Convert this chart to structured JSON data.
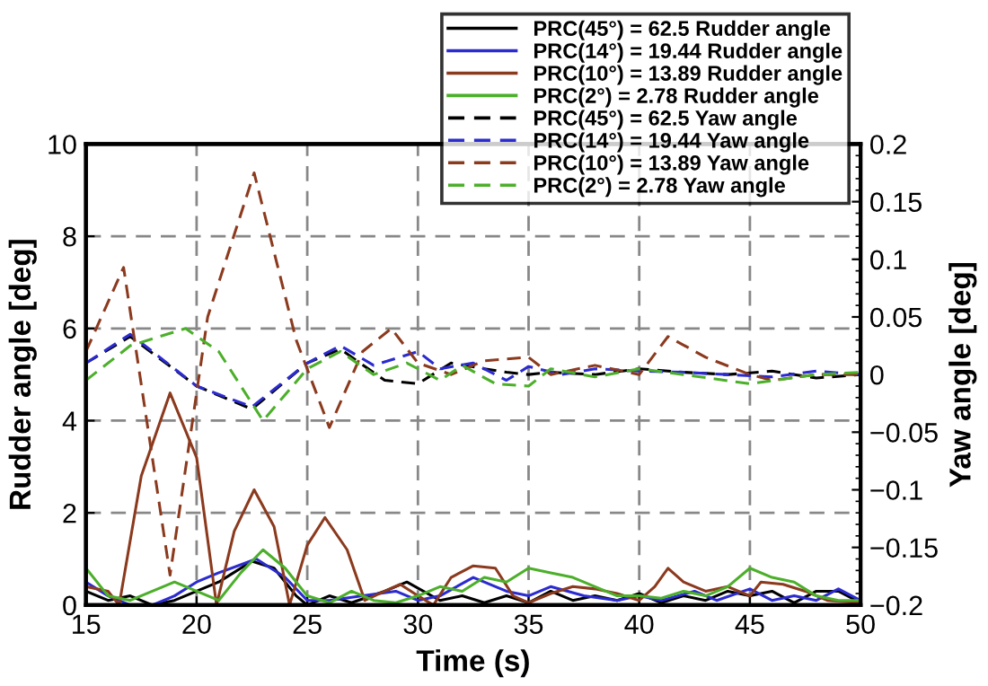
{
  "chart_data": {
    "type": "line",
    "xlabel": "Time (s)",
    "ylabel": "Rudder angle [deg]",
    "y2label": "Yaw angle [deg]",
    "xlim": [
      15,
      50
    ],
    "xticks": [
      15,
      20,
      25,
      30,
      35,
      40,
      45,
      50
    ],
    "ylim": [
      0,
      10
    ],
    "yticks": [
      0,
      2,
      4,
      6,
      8,
      10
    ],
    "y2lim": [
      -0.2,
      0.2
    ],
    "y2ticks": [
      {
        "value": -0.2,
        "label": "−0.2"
      },
      {
        "value": -0.15,
        "label": "−0.15"
      },
      {
        "value": -0.1,
        "label": "−0.1"
      },
      {
        "value": -0.05,
        "label": "−0.05"
      },
      0,
      0.05,
      0.1,
      0.15,
      0.2
    ],
    "grid": true,
    "legend": "top right",
    "series": [
      {
        "name": "PRC(45°) = 62.5 Rudder angle",
        "color": "#000000",
        "line_style": "solid",
        "x": [
          15,
          16,
          17,
          18,
          19,
          20,
          21,
          22.5,
          23.5,
          24.5,
          25,
          26,
          27,
          28.5,
          29.5,
          31,
          32,
          33,
          34,
          35,
          36,
          37,
          38,
          39,
          40,
          41,
          42,
          43,
          44,
          45,
          46,
          47,
          48,
          49,
          50
        ],
        "values": [
          0.3,
          0.1,
          0.2,
          0,
          0.1,
          0.3,
          0.5,
          0.95,
          0.8,
          0.2,
          0,
          0.2,
          0.05,
          0.3,
          0.5,
          0.1,
          0.2,
          0.05,
          0.2,
          0.05,
          0.3,
          0.1,
          0.2,
          0.1,
          0.25,
          0.05,
          0.2,
          0.1,
          0.3,
          0.2,
          0.3,
          0.05,
          0.3,
          0.3,
          0.05
        ]
      },
      {
        "name": "PRC(14°) = 19.44 Rudder angle",
        "color": "#2b2bd0",
        "line_style": "solid",
        "x": [
          15,
          16,
          17,
          18,
          19,
          20,
          21,
          22.7,
          24,
          25,
          26,
          27.5,
          29,
          30,
          31,
          32.5,
          34,
          35,
          36,
          37.5,
          39,
          40,
          41,
          42.5,
          43.5,
          45,
          46,
          47,
          48,
          49,
          50
        ],
        "values": [
          0.5,
          0.2,
          0,
          0,
          0.2,
          0.5,
          0.7,
          1.0,
          0.6,
          0.1,
          0.1,
          0.2,
          0.3,
          0.1,
          0.2,
          0.6,
          0.3,
          0.2,
          0.4,
          0.2,
          0.1,
          0.2,
          0.1,
          0.3,
          0.1,
          0.35,
          0.1,
          0.2,
          0.1,
          0.35,
          0.1
        ]
      },
      {
        "name": "PRC(10°) = 13.89 Rudder angle",
        "color": "#8b3a1e",
        "line_style": "solid",
        "x": [
          15,
          16,
          16.5,
          17.5,
          18.8,
          20,
          20.9,
          21.7,
          22.6,
          23.5,
          24.2,
          25,
          25.8,
          26.8,
          27.6,
          28.5,
          29.2,
          30,
          30.7,
          31.5,
          32.5,
          33.5,
          34.3,
          35,
          36,
          37,
          38,
          39,
          40,
          40.7,
          41.3,
          42,
          43,
          44,
          45,
          45.5,
          46.5,
          47.5,
          48.5,
          50
        ],
        "values": [
          0.4,
          0.3,
          0,
          2.8,
          4.6,
          3.2,
          0,
          1.6,
          2.5,
          1.7,
          0,
          1.3,
          1.9,
          1.2,
          0.1,
          0.3,
          0.45,
          0.2,
          0,
          0.6,
          0.85,
          0.8,
          0.2,
          0.05,
          0.25,
          0.4,
          0.35,
          0.25,
          0.1,
          0.4,
          0.8,
          0.5,
          0.3,
          0.4,
          0.2,
          0.5,
          0.45,
          0.3,
          0.1,
          0.05
        ]
      },
      {
        "name": "PRC(2°) = 2.78 Rudder angle",
        "color": "#4caf2a",
        "line_style": "solid",
        "x": [
          15,
          16,
          17,
          18,
          19,
          20,
          21,
          22,
          23,
          24,
          25,
          26,
          27,
          28,
          29,
          30,
          31,
          32,
          33,
          34,
          35,
          36,
          37,
          38,
          39,
          40,
          41,
          42,
          43,
          44,
          45,
          46,
          47,
          48,
          49,
          50
        ],
        "values": [
          0.8,
          0.2,
          0.1,
          0.3,
          0.5,
          0.3,
          0.1,
          0.7,
          1.2,
          0.8,
          0.2,
          0.05,
          0.3,
          0.1,
          0.05,
          0.2,
          0.4,
          0.3,
          0.6,
          0.5,
          0.8,
          0.7,
          0.6,
          0.4,
          0.2,
          0.2,
          0.15,
          0.3,
          0.2,
          0.4,
          0.8,
          0.6,
          0.5,
          0.2,
          0.1,
          0.1
        ]
      },
      {
        "name": "PRC(45°) = 62.5 Yaw angle",
        "color": "#000000",
        "line_style": "dashed",
        "axis": "y2",
        "x": [
          15,
          17,
          20,
          22.5,
          25,
          26.5,
          28.5,
          30,
          31.5,
          33,
          34,
          35,
          36,
          38,
          40,
          42,
          44,
          46,
          48,
          50
        ],
        "values": [
          0.01,
          0.033,
          -0.01,
          -0.03,
          0.01,
          0.022,
          -0.005,
          -0.008,
          0.01,
          0.005,
          0.002,
          0,
          0.002,
          0,
          0.005,
          0.002,
          0,
          0.003,
          -0.003,
          0
        ]
      },
      {
        "name": "PRC(14°) = 19.44 Yaw angle",
        "color": "#2b2bd0",
        "line_style": "dashed",
        "axis": "y2",
        "x": [
          15,
          17,
          20,
          22.5,
          25,
          26.5,
          28,
          30,
          31,
          32.5,
          34,
          35,
          36.5,
          38,
          40,
          42,
          44,
          46,
          48,
          50
        ],
        "values": [
          0.01,
          0.035,
          -0.01,
          -0.028,
          0.01,
          0.025,
          0.008,
          0.02,
          0.005,
          0.01,
          -0.005,
          0.007,
          0,
          0.005,
          0.003,
          0.002,
          0,
          -0.002,
          0.003,
          0
        ]
      },
      {
        "name": "PRC(10°) = 13.89 Yaw angle",
        "color": "#8b3a1e",
        "line_style": "dashed",
        "axis": "y2",
        "x": [
          15,
          16.7,
          18.8,
          20.5,
          22.6,
          24.5,
          26,
          27.5,
          28.8,
          30,
          31.5,
          33,
          35,
          36,
          38,
          40,
          41.3,
          43,
          45,
          46,
          48,
          50
        ],
        "values": [
          0.02,
          0.093,
          -0.174,
          0.05,
          0.175,
          0.03,
          -0.046,
          0.02,
          0.04,
          0.01,
          0,
          0.012,
          0.015,
          0,
          0.008,
          0,
          0.033,
          0.015,
          0,
          -0.005,
          0,
          0
        ]
      },
      {
        "name": "PRC(2°) = 2.78 Yaw angle",
        "color": "#4caf2a",
        "line_style": "dashed",
        "axis": "y2",
        "x": [
          15,
          17,
          19.5,
          21,
          23,
          25,
          26.5,
          28,
          29.5,
          31,
          32,
          33.5,
          35,
          36,
          38,
          40,
          42,
          45,
          48,
          50
        ],
        "values": [
          -0.005,
          0.025,
          0.04,
          0.02,
          -0.04,
          0.005,
          0.02,
          0,
          0.01,
          -0.005,
          0.008,
          -0.008,
          -0.01,
          0.005,
          -0.002,
          0.005,
          0,
          -0.008,
          0,
          0.002
        ]
      }
    ]
  }
}
